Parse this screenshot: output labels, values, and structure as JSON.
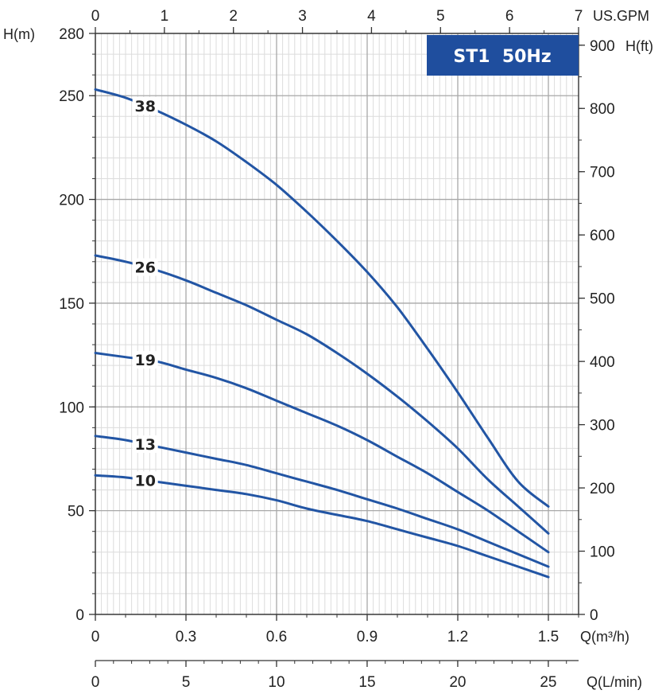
{
  "chart_data": {
    "type": "line",
    "title": "ST1  50Hz",
    "badge_color": "#1f4e9e",
    "curve_color": "#2255a4",
    "grid": true,
    "xlabel": "Q(m³/h)",
    "ylabel": "H(m)",
    "xlim": [
      0,
      1.6
    ],
    "ylim": [
      0,
      280
    ],
    "x_ticks": [
      0,
      0.3,
      0.6,
      0.9,
      1.2,
      1.5
    ],
    "x_tick_labels": [
      "0",
      "0.3",
      "0.6",
      "0.9",
      "1.2",
      "1.5"
    ],
    "y_ticks": [
      0,
      50,
      100,
      150,
      200,
      250,
      280
    ],
    "y_tick_labels": [
      "0",
      "50",
      "100",
      "150",
      "200",
      "250",
      "280"
    ],
    "secondary_axes": {
      "top": {
        "label": "US.GPM",
        "range": [
          0,
          7
        ],
        "ticks": [
          0,
          1,
          2,
          3,
          4,
          5,
          6,
          7
        ],
        "tick_labels": [
          "0",
          "1",
          "2",
          "3",
          "4",
          "5",
          "6",
          "7"
        ]
      },
      "right": {
        "label": "H(ft)",
        "range": [
          0,
          918.6
        ],
        "ticks": [
          0,
          100,
          200,
          300,
          400,
          500,
          600,
          700,
          800,
          900
        ],
        "tick_labels": [
          "0",
          "100",
          "200",
          "300",
          "400",
          "500",
          "600",
          "700",
          "800",
          "900"
        ]
      },
      "bottom2": {
        "label": "Q(L/min)",
        "range": [
          0,
          26.67
        ],
        "ticks": [
          0,
          5,
          10,
          15,
          20,
          25
        ],
        "tick_labels": [
          "0",
          "5",
          "10",
          "15",
          "20",
          "25"
        ]
      }
    },
    "series": [
      {
        "name": "38",
        "label_x": 0.165,
        "x": [
          0,
          0.1,
          0.2,
          0.3,
          0.4,
          0.5,
          0.6,
          0.7,
          0.8,
          0.9,
          1.0,
          1.1,
          1.2,
          1.3,
          1.4,
          1.5
        ],
        "y": [
          253,
          249,
          243,
          236,
          228,
          218,
          207,
          194,
          180,
          165,
          148,
          128,
          107,
          85,
          64,
          52
        ]
      },
      {
        "name": "26",
        "label_x": 0.165,
        "x": [
          0,
          0.1,
          0.2,
          0.3,
          0.4,
          0.5,
          0.6,
          0.7,
          0.8,
          0.9,
          1.0,
          1.1,
          1.2,
          1.3,
          1.4,
          1.5
        ],
        "y": [
          173,
          170,
          166,
          161,
          155,
          149,
          142,
          135,
          126,
          116,
          105,
          93,
          80,
          65,
          52,
          39
        ]
      },
      {
        "name": "19",
        "label_x": 0.165,
        "x": [
          0,
          0.1,
          0.2,
          0.3,
          0.4,
          0.5,
          0.6,
          0.7,
          0.8,
          0.9,
          1.0,
          1.1,
          1.2,
          1.3,
          1.4,
          1.5
        ],
        "y": [
          126,
          124,
          122,
          118,
          114,
          109,
          103,
          97,
          91,
          84,
          76,
          68,
          59,
          50,
          40,
          30
        ]
      },
      {
        "name": "13",
        "label_x": 0.165,
        "x": [
          0,
          0.1,
          0.2,
          0.3,
          0.4,
          0.5,
          0.6,
          0.7,
          0.8,
          0.9,
          1.0,
          1.1,
          1.2,
          1.3,
          1.4,
          1.5
        ],
        "y": [
          86,
          84,
          81,
          78,
          75,
          72,
          68,
          64,
          60,
          55.5,
          51,
          46,
          41,
          35,
          29,
          23
        ]
      },
      {
        "name": "10",
        "label_x": 0.165,
        "x": [
          0,
          0.1,
          0.2,
          0.3,
          0.4,
          0.5,
          0.6,
          0.7,
          0.8,
          0.9,
          1.0,
          1.1,
          1.2,
          1.3,
          1.4,
          1.5
        ],
        "y": [
          67,
          66,
          64,
          62,
          60,
          58,
          55,
          51,
          48,
          45,
          41,
          37,
          33,
          28,
          23,
          18
        ]
      }
    ]
  }
}
